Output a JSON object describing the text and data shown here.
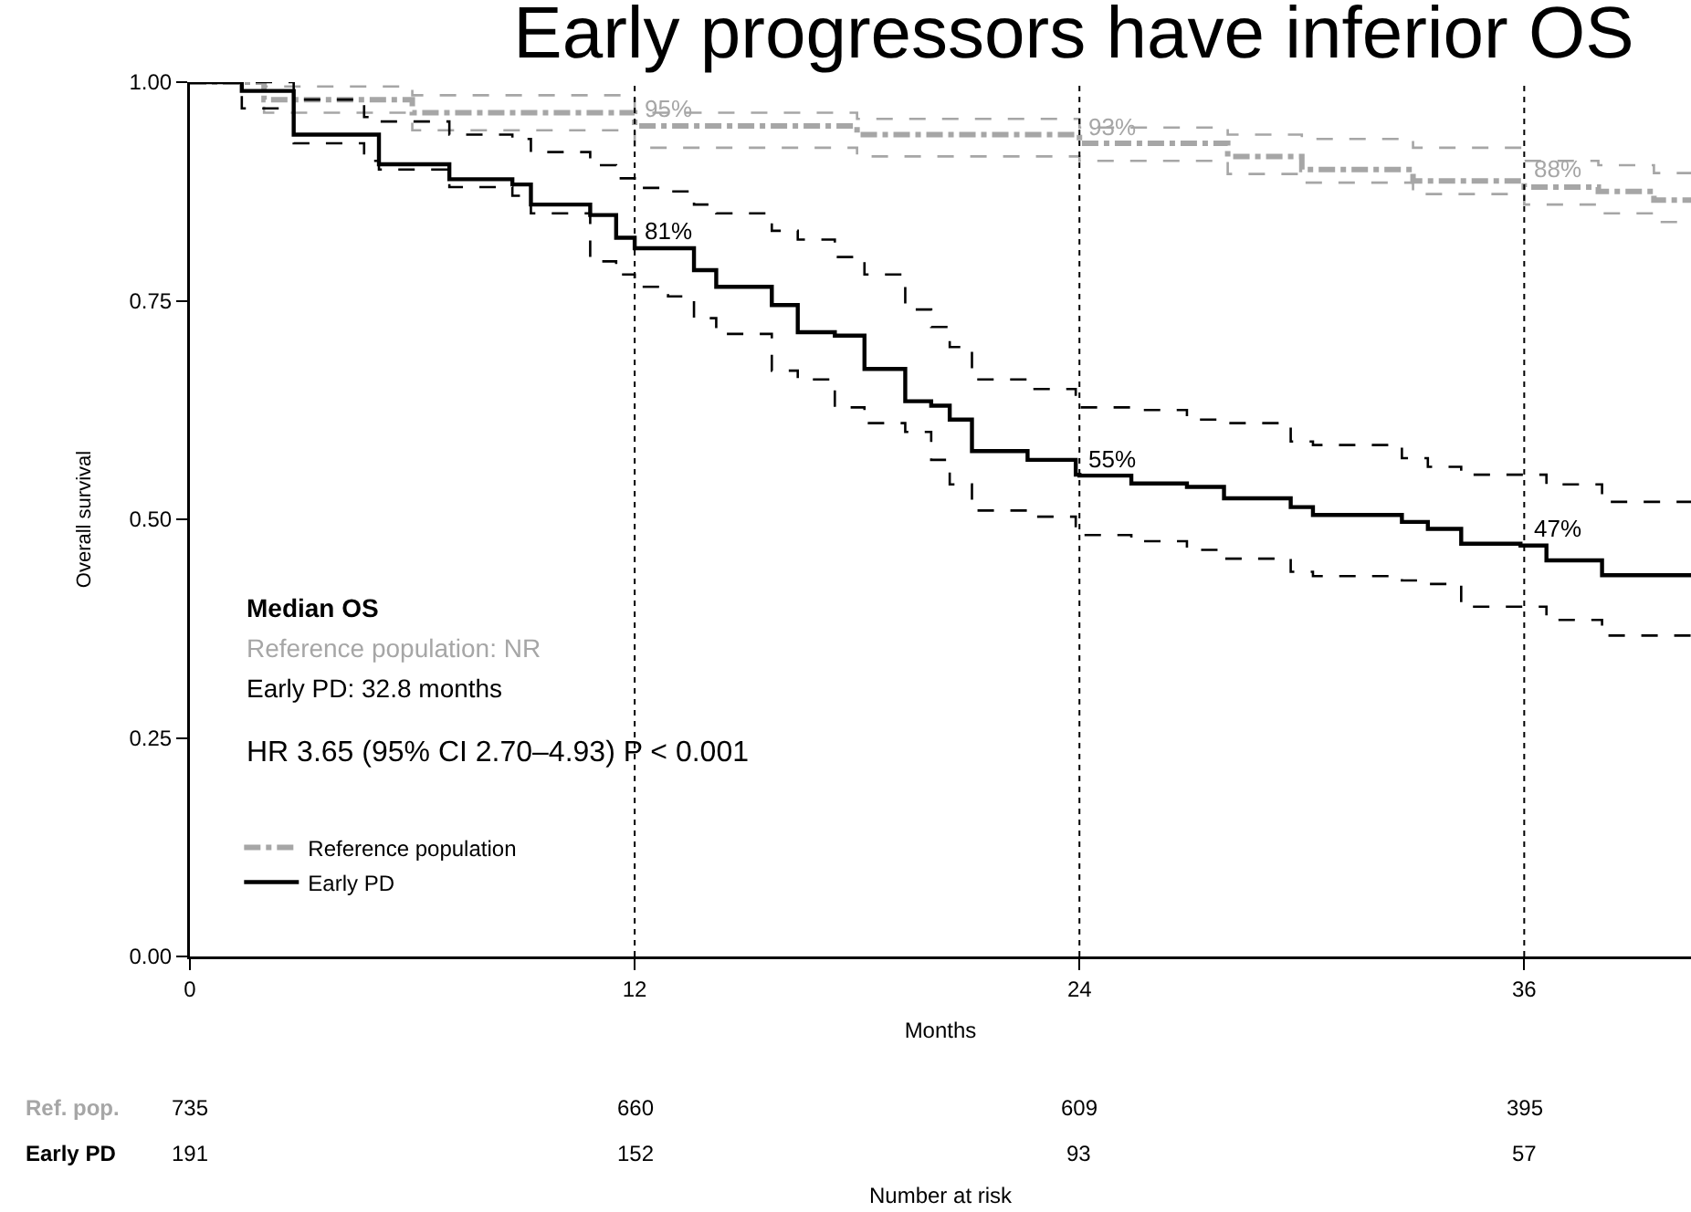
{
  "chart_data": {
    "type": "step",
    "title": "Early progressors have inferior OS",
    "xlabel": "Months",
    "ylabel": "Overall survival",
    "xlim": [
      0,
      40.5
    ],
    "ylim": [
      0,
      1
    ],
    "xticks": [
      0,
      12,
      24,
      36
    ],
    "yticks": [
      {
        "value": 0,
        "label": "0.00"
      },
      {
        "value": 0.25,
        "label": "0.25"
      },
      {
        "value": 0.5,
        "label": "0.50"
      },
      {
        "value": 0.75,
        "label": "0.75"
      },
      {
        "value": 1,
        "label": "1.00"
      }
    ],
    "grid": false,
    "legend": "bottom left",
    "marker": "none",
    "series": [
      {
        "name": "Reference population",
        "color": "#a6a6a6",
        "line_style": "dashed",
        "x": [
          0,
          2,
          6,
          12,
          18,
          24,
          28,
          30,
          33,
          36,
          38,
          39.5,
          40.5
        ],
        "values": [
          1,
          0.98,
          0.965,
          0.95,
          0.94,
          0.93,
          0.915,
          0.9,
          0.887,
          0.88,
          0.875,
          0.865,
          0.865
        ]
      },
      {
        "color": "#a6a6a6",
        "line_style": "dashed",
        "x": [
          0,
          2,
          6,
          12,
          18,
          24,
          28,
          30,
          33,
          36,
          38,
          39.5,
          40.5
        ],
        "values": [
          1,
          0.995,
          0.985,
          0.965,
          0.958,
          0.948,
          0.94,
          0.935,
          0.925,
          0.91,
          0.905,
          0.896,
          0.896
        ]
      },
      {
        "color": "#a6a6a6",
        "line_style": "dashed",
        "x": [
          0,
          2,
          6,
          12,
          18,
          24,
          28,
          30,
          33,
          36,
          38,
          39.5,
          40.5
        ],
        "values": [
          1,
          0.965,
          0.945,
          0.925,
          0.915,
          0.91,
          0.895,
          0.885,
          0.872,
          0.86,
          0.85,
          0.84,
          0.84
        ]
      },
      {
        "name": "Early PD",
        "color": "#000000",
        "line_style": "solid",
        "x": [
          0,
          1.4,
          2.8,
          4.7,
          5.1,
          7,
          8.7,
          9.2,
          10.8,
          11.5,
          12,
          12.9,
          13.6,
          14.2,
          15.7,
          16.4,
          17.4,
          18.2,
          19.3,
          20,
          20.5,
          21.1,
          22.6,
          23.9,
          24,
          25.4,
          26.9,
          27.9,
          29.7,
          30.3,
          32.7,
          33.4,
          34.3,
          35.9,
          36,
          36.6,
          38.1,
          40.5
        ],
        "values": [
          1,
          0.99,
          0.94,
          0.94,
          0.906,
          0.889,
          0.883,
          0.86,
          0.848,
          0.822,
          0.81,
          0.81,
          0.785,
          0.766,
          0.745,
          0.714,
          0.71,
          0.672,
          0.635,
          0.63,
          0.614,
          0.578,
          0.568,
          0.551,
          0.55,
          0.541,
          0.537,
          0.524,
          0.514,
          0.505,
          0.497,
          0.489,
          0.472,
          0.47,
          0.47,
          0.453,
          0.436,
          0.436
        ]
      },
      {
        "color": "#000000",
        "line_style": "dashed",
        "x": [
          0,
          1.4,
          2.8,
          4.7,
          5.1,
          7,
          8.7,
          9.2,
          10.8,
          11.5,
          12,
          12.9,
          13.6,
          14.2,
          15.7,
          16.4,
          17.4,
          18.2,
          19.3,
          20,
          20.5,
          21.1,
          22.6,
          23.9,
          24,
          25.4,
          26.9,
          27.9,
          29.7,
          30.3,
          32.7,
          33.4,
          34.3,
          35.9,
          36,
          36.6,
          38.1,
          40.5
        ],
        "values": [
          1,
          1,
          0.98,
          0.96,
          0.955,
          0.94,
          0.935,
          0.92,
          0.905,
          0.89,
          0.879,
          0.875,
          0.86,
          0.85,
          0.83,
          0.82,
          0.8,
          0.78,
          0.74,
          0.72,
          0.697,
          0.66,
          0.649,
          0.63,
          0.628,
          0.625,
          0.614,
          0.61,
          0.589,
          0.585,
          0.57,
          0.56,
          0.551,
          0.551,
          0.551,
          0.54,
          0.52,
          0.52
        ]
      },
      {
        "color": "#000000",
        "line_style": "dashed",
        "x": [
          0,
          1.4,
          2.8,
          4.7,
          5.1,
          7,
          8.7,
          9.2,
          10.8,
          11.5,
          12,
          12.9,
          13.6,
          14.2,
          15.7,
          16.4,
          17.4,
          18.2,
          19.3,
          20,
          20.5,
          21.1,
          22.6,
          23.9,
          24,
          25.4,
          26.9,
          27.9,
          29.7,
          30.3,
          32.7,
          33.4,
          34.3,
          35.9,
          36,
          36.6,
          38.1,
          40.5
        ],
        "values": [
          1,
          0.97,
          0.93,
          0.91,
          0.9,
          0.88,
          0.87,
          0.85,
          0.795,
          0.78,
          0.766,
          0.755,
          0.73,
          0.712,
          0.67,
          0.66,
          0.628,
          0.61,
          0.6,
          0.568,
          0.54,
          0.51,
          0.503,
          0.485,
          0.482,
          0.475,
          0.465,
          0.455,
          0.44,
          0.435,
          0.43,
          0.426,
          0.4,
          0.4,
          0.4,
          0.385,
          0.367,
          0.367
        ]
      }
    ],
    "ref_lines": [
      {
        "axis": "x",
        "value": 12,
        "line_style": "dotted",
        "color": "#000000"
      },
      {
        "axis": "x",
        "value": 24,
        "line_style": "dotted",
        "color": "#000000"
      },
      {
        "axis": "x",
        "value": 36,
        "line_style": "dotted",
        "color": "#000000"
      }
    ],
    "annotations": [
      {
        "text": "95%",
        "x": 12,
        "y": 0.95
      },
      {
        "text": "93%",
        "x": 24,
        "y": 0.93
      },
      {
        "text": "88%",
        "x": 36,
        "y": 0.88
      },
      {
        "text": "81%",
        "x": 12,
        "y": 0.81
      },
      {
        "text": "55%",
        "x": 24,
        "y": 0.55
      },
      {
        "text": "47%",
        "x": 36,
        "y": 0.47
      },
      "Median OS",
      "Reference population: NR",
      "Early PD: 32.8 months",
      "HR 3.65 (95% CI 2.70–4.93) P < 0.001",
      "Ref. pop.",
      "735",
      "660",
      "609",
      "395",
      "Early PD",
      "191",
      "152",
      "93",
      "57",
      "Number at risk"
    ]
  }
}
